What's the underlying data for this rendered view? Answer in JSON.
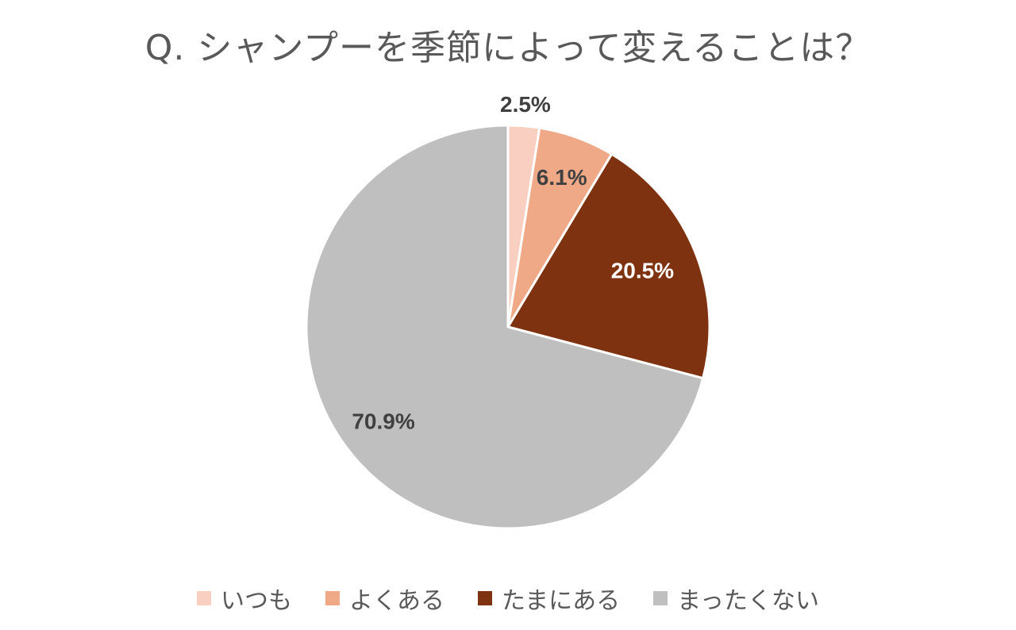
{
  "chart_data": {
    "type": "pie",
    "title": "Q. シャンプーを季節によって変えることは？",
    "legend_position": "bottom",
    "start_angle": "top, clockwise",
    "slices": [
      {
        "label": "いつも",
        "value": 2.5,
        "value_label": "2.5%",
        "color": "#F8CFC0",
        "label_color": "#404040"
      },
      {
        "label": "よくある",
        "value": 6.1,
        "value_label": "6.1%",
        "color": "#EFA987",
        "label_color": "#404040"
      },
      {
        "label": "たまにある",
        "value": 20.5,
        "value_label": "20.5%",
        "color": "#7F3210",
        "label_color": "#FFFFFF"
      },
      {
        "label": "まったくない",
        "value": 70.9,
        "value_label": "70.9%",
        "color": "#BFBFBF",
        "label_color": "#404040"
      }
    ]
  }
}
